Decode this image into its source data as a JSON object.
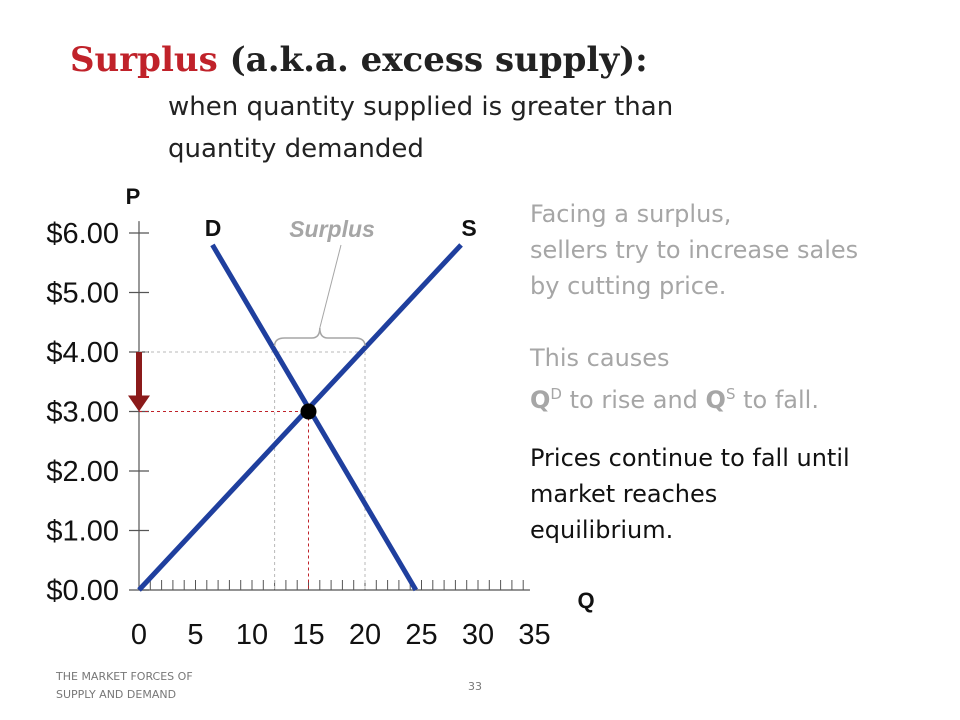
{
  "title": {
    "highlight": "Surplus",
    "rest": " (a.k.a. excess supply):"
  },
  "subtitle": {
    "line1": "when quantity supplied is greater than",
    "line2": "quantity demanded"
  },
  "para1": {
    "line1": "Facing a surplus,",
    "line2": "sellers try to increase sales",
    "line3": "by cutting price."
  },
  "para2": {
    "line1_a": "This causes",
    "q": "Q",
    "d_sup": "D",
    "mid": " to rise and ",
    "s_sup": "S",
    "end": " to fall."
  },
  "para3": {
    "line1": "Prices continue to fall until",
    "line2": "market reaches",
    "line3": "equilibrium."
  },
  "footer": {
    "line1": "THE MARKET FORCES OF",
    "line2": "SUPPLY AND DEMAND",
    "page": "33"
  },
  "colors": {
    "title_accent": "#c0222a",
    "curve": "#1f3f9e",
    "arrow": "#8b1a1a",
    "gray_text": "#a6a6a6"
  },
  "chart_data": {
    "type": "line",
    "xlabel": "Q",
    "ylabel": "P",
    "xlim": [
      0,
      35
    ],
    "ylim": [
      0,
      6
    ],
    "x_ticks": [
      0,
      5,
      10,
      15,
      20,
      25,
      30,
      35
    ],
    "x_tick_labels": [
      "0",
      "5",
      "10",
      "15",
      "20",
      "25",
      "30",
      "35"
    ],
    "y_ticks": [
      0,
      1,
      2,
      3,
      4,
      5,
      6
    ],
    "y_tick_labels": [
      "$0.00",
      "$1.00",
      "$2.00",
      "$3.00",
      "$4.00",
      "$5.00",
      "$6.00"
    ],
    "series": [
      {
        "name": "D",
        "x": [
          6.5,
          24.5
        ],
        "y": [
          5.8,
          0
        ]
      },
      {
        "name": "S",
        "x": [
          0,
          28.5
        ],
        "y": [
          0,
          5.8
        ]
      }
    ],
    "equilibrium": {
      "x": 15,
      "y": 3
    },
    "surplus": {
      "label": "Surplus",
      "price": 4,
      "qd": 12,
      "qs": 20
    },
    "arrow": {
      "from": 4,
      "to": 3
    },
    "grid": false
  }
}
